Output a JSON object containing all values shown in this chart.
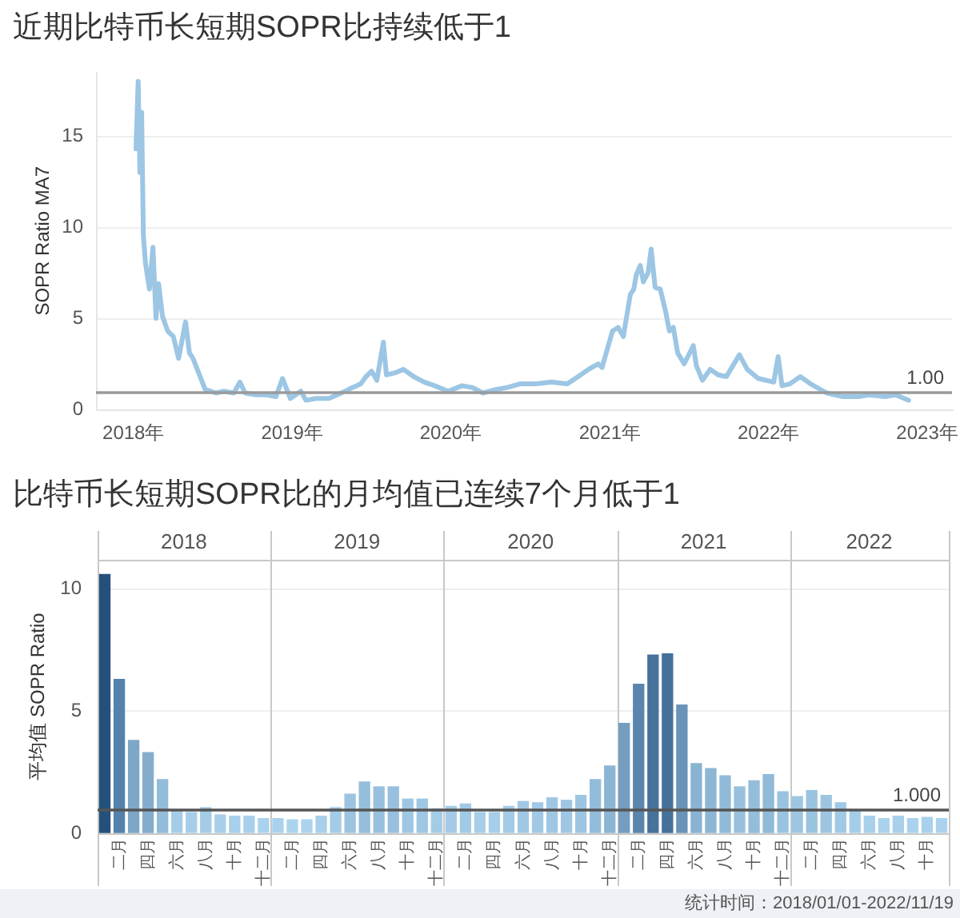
{
  "chart_data": [
    {
      "type": "line",
      "title": "近期比特币长短期SOPR比持续低于1",
      "ylabel": "SOPR Ratio MA7",
      "color": "#9cc6e4",
      "x": [
        "2018-01-07",
        "2018-01-12",
        "2018-01-16",
        "2018-01-20",
        "2018-01-24",
        "2018-01-29",
        "2018-02-03",
        "2018-02-07",
        "2018-02-15",
        "2018-02-22",
        "2018-02-28",
        "2018-03-09",
        "2018-03-21",
        "2018-04-03",
        "2018-04-15",
        "2018-05-01",
        "2018-05-10",
        "2018-05-18",
        "2018-05-28",
        "2018-06-15",
        "2018-07-10",
        "2018-07-28",
        "2018-08-20",
        "2018-09-03",
        "2018-09-15",
        "2018-10-10",
        "2018-11-03",
        "2018-11-25",
        "2018-12-10",
        "2018-12-28",
        "2019-01-21",
        "2019-02-02",
        "2019-02-25",
        "2019-03-27",
        "2019-04-15",
        "2019-05-03",
        "2019-05-20",
        "2019-06-08",
        "2019-06-20",
        "2019-07-03",
        "2019-07-15",
        "2019-07-30",
        "2019-08-06",
        "2019-08-25",
        "2019-09-14",
        "2019-10-08",
        "2019-11-01",
        "2019-11-25",
        "2019-12-26",
        "2020-01-27",
        "2020-02-20",
        "2020-03-15",
        "2020-04-15",
        "2020-05-10",
        "2020-06-08",
        "2020-07-15",
        "2020-08-20",
        "2020-09-25",
        "2020-10-20",
        "2020-11-13",
        "2020-12-05",
        "2020-12-14",
        "2021-01-07",
        "2021-01-20",
        "2021-02-01",
        "2021-02-17",
        "2021-02-25",
        "2021-03-03",
        "2021-03-12",
        "2021-03-19",
        "2021-03-30",
        "2021-04-06",
        "2021-04-15",
        "2021-04-27",
        "2021-05-09",
        "2021-05-18",
        "2021-05-27",
        "2021-06-06",
        "2021-06-21",
        "2021-07-12",
        "2021-07-19",
        "2021-08-02",
        "2021-08-20",
        "2021-09-07",
        "2021-09-26",
        "2021-10-26",
        "2021-11-13",
        "2021-12-08",
        "2022-01-13",
        "2022-01-23",
        "2022-02-01",
        "2022-02-19",
        "2022-03-15",
        "2022-04-08",
        "2022-05-15",
        "2022-06-21",
        "2022-07-27",
        "2022-08-20",
        "2022-09-26",
        "2022-10-20",
        "2022-11-19"
      ],
      "values": [
        14.3,
        18.0,
        13.0,
        16.3,
        9.5,
        8.0,
        7.2,
        6.6,
        8.9,
        5.0,
        6.9,
        5.1,
        4.3,
        4.0,
        2.8,
        4.8,
        3.1,
        2.8,
        2.2,
        1.1,
        0.9,
        1.0,
        0.9,
        1.5,
        0.9,
        0.8,
        0.8,
        0.7,
        1.7,
        0.6,
        1.0,
        0.5,
        0.6,
        0.6,
        0.8,
        1.0,
        1.2,
        1.4,
        1.8,
        2.1,
        1.6,
        3.7,
        1.9,
        2.0,
        2.2,
        1.8,
        1.5,
        1.3,
        1.0,
        1.3,
        1.2,
        0.9,
        1.1,
        1.2,
        1.4,
        1.4,
        1.5,
        1.4,
        1.8,
        2.2,
        2.5,
        2.3,
        4.3,
        4.5,
        4.0,
        6.3,
        6.6,
        7.4,
        7.9,
        7.0,
        7.5,
        8.8,
        6.7,
        6.6,
        5.4,
        4.3,
        4.5,
        3.1,
        2.5,
        3.5,
        2.4,
        1.6,
        2.2,
        1.9,
        1.8,
        3.0,
        2.2,
        1.7,
        1.5,
        2.9,
        1.3,
        1.4,
        1.8,
        1.4,
        0.9,
        0.7,
        0.7,
        0.8,
        0.7,
        0.8,
        0.5
      ],
      "xlim": [
        "2017-10-07",
        "2023-02-27"
      ],
      "xticks": [
        {
          "value": "2018-01-01",
          "label": "2018年"
        },
        {
          "value": "2019-01-01",
          "label": "2019年"
        },
        {
          "value": "2020-01-01",
          "label": "2020年"
        },
        {
          "value": "2021-01-01",
          "label": "2021年"
        },
        {
          "value": "2022-01-01",
          "label": "2022年"
        },
        {
          "value": "2023-01-01",
          "label": "2023年"
        }
      ],
      "ylim": [
        0,
        18.5
      ],
      "yticks": [
        0,
        5,
        10,
        15
      ],
      "grid": "y",
      "ref_lines": [
        {
          "axis": "y",
          "value": 1,
          "label": "1.00",
          "color": "#9a9a9a"
        }
      ]
    },
    {
      "type": "bar",
      "title": "比特币长短期SOPR比的月均值已连续7个月低于1",
      "ylabel": "平均值 SOPR Ratio",
      "categories": [
        null,
        "二月",
        null,
        "四月",
        null,
        "六月",
        null,
        "八月",
        null,
        "十月",
        null,
        "十二月",
        null,
        "二月",
        null,
        "四月",
        null,
        "六月",
        null,
        "八月",
        null,
        "十月",
        null,
        "十二月",
        null,
        "二月",
        null,
        "四月",
        null,
        "六月",
        null,
        "八月",
        null,
        "十月",
        null,
        "十二月",
        null,
        "二月",
        null,
        "四月",
        null,
        "六月",
        null,
        "八月",
        null,
        "十月",
        null,
        "十二月",
        null,
        "二月",
        null,
        "四月",
        null,
        "六月",
        null,
        "八月",
        null,
        "十月",
        null
      ],
      "values": [
        10.6,
        6.3,
        3.8,
        3.3,
        2.2,
        0.95,
        0.85,
        1.05,
        0.75,
        0.7,
        0.7,
        0.6,
        0.6,
        0.55,
        0.55,
        0.7,
        1.05,
        1.6,
        2.1,
        1.9,
        1.9,
        1.4,
        1.4,
        1.0,
        1.1,
        1.2,
        0.85,
        0.85,
        1.1,
        1.3,
        1.25,
        1.45,
        1.35,
        1.55,
        2.2,
        2.75,
        4.5,
        6.1,
        7.3,
        7.35,
        5.25,
        2.85,
        2.65,
        2.35,
        1.9,
        2.15,
        2.4,
        1.7,
        1.5,
        1.75,
        1.55,
        1.25,
        0.95,
        0.7,
        0.6,
        0.7,
        0.6,
        0.65,
        0.6
      ],
      "colors": [
        "#24507c",
        "#5582ab",
        "#7da7c7",
        "#84adcd",
        "#93bcda",
        "#a5cde9",
        "#a6ceea",
        "#a3cce8",
        "#a7cfeb",
        "#a8d0eb",
        "#a8d0eb",
        "#aad2ed",
        "#aad2ed",
        "#abd3ee",
        "#abd3ee",
        "#a8d0eb",
        "#a3cce8",
        "#9cc4e1",
        "#95bedb",
        "#98c0de",
        "#98c0de",
        "#9fc7e3",
        "#9fc7e3",
        "#a4cce8",
        "#a3cbe7",
        "#a1cae6",
        "#a6ceea",
        "#a6ceea",
        "#a3cbe7",
        "#a0c8e5",
        "#a1c9e5",
        "#9fc7e3",
        "#9fc7e4",
        "#9dc5e2",
        "#93bcda",
        "#8cb5d4",
        "#749dbf",
        "#5a86ad",
        "#46729c",
        "#45719b",
        "#6993b7",
        "#8ab3d2",
        "#8db6d5",
        "#91bad8",
        "#98c0de",
        "#94bddb",
        "#91b9d8",
        "#9ac3e0",
        "#9dc6e2",
        "#9ac3e0",
        "#9dc5e2",
        "#a1c9e5",
        "#a4cde8",
        "#a8d0eb",
        "#aad2ed",
        "#a8d0eb",
        "#aad2ed",
        "#a9d1ec",
        "#aad2ed"
      ],
      "x2lim": [
        "2018-01-01",
        "2022-12-01"
      ],
      "x2ticks": [
        {
          "value": "2018-07-02",
          "label": "2018"
        },
        {
          "value": "2019-01-01",
          "label": null
        },
        {
          "value": "2019-07-02",
          "label": "2019"
        },
        {
          "value": "2020-01-01",
          "label": null
        },
        {
          "value": "2020-07-02",
          "label": "2020"
        },
        {
          "value": "2021-01-01",
          "label": null
        },
        {
          "value": "2021-07-02",
          "label": "2021"
        },
        {
          "value": "2022-01-01",
          "label": null
        },
        {
          "value": "2022-06-16",
          "label": "2022"
        }
      ],
      "ylim": [
        0,
        11.2
      ],
      "yticks": [
        0,
        5,
        10
      ],
      "grid": true,
      "ref_lines": [
        {
          "axis": "y",
          "value": 1,
          "label": "1.000",
          "color": "#555555"
        }
      ],
      "annotations": [
        "统计时间：2018/01/01-2022/11/19"
      ]
    }
  ]
}
